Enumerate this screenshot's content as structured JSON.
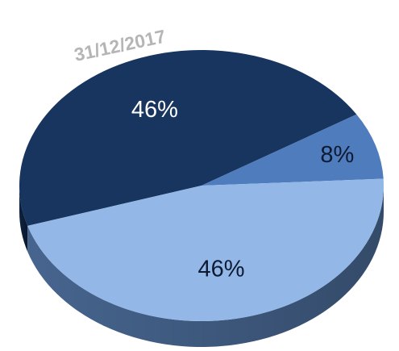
{
  "chart_data": {
    "type": "pie",
    "style": "3d-tilted",
    "date": "31/12/2017",
    "slices": [
      {
        "label": "46%",
        "value": 46,
        "color": "#17355f",
        "label_color": "#ffffff"
      },
      {
        "label": "8%",
        "value": 8,
        "color": "#4f7cbc",
        "label_color": "#0d1a33"
      },
      {
        "label": "46%",
        "value": 46,
        "color": "#93b8e8",
        "label_color": "#0d1a33"
      }
    ],
    "side_colors": [
      "#0e2342",
      "#30507c",
      "#4a6a96"
    ],
    "date_color": "#b5b5b5"
  }
}
